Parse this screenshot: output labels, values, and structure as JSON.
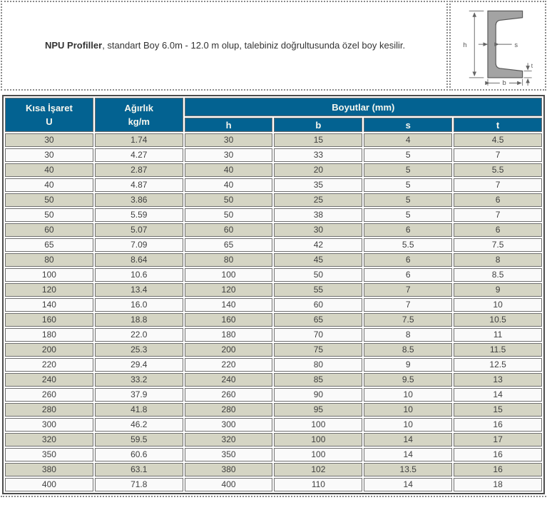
{
  "banner": {
    "title_bold": "NPU Profiller",
    "rest": ", standart Boy 6.0m - 12.0 m olup, talebiniz doğrultusunda özel boy kesilir."
  },
  "diagram": {
    "h_label": "h",
    "s_label": "s",
    "b_label": "b",
    "t_label": "t"
  },
  "table": {
    "headers": {
      "col1_line1": "Kısa İşaret",
      "col1_line2": "U",
      "col2_line1": "Ağırlık",
      "col2_line2": "kg/m",
      "group": "Boyutlar (mm)",
      "sub": [
        "h",
        "b",
        "s",
        "t"
      ]
    },
    "rows": [
      [
        "30",
        "1.74",
        "30",
        "15",
        "4",
        "4.5"
      ],
      [
        "30",
        "4.27",
        "30",
        "33",
        "5",
        "7"
      ],
      [
        "40",
        "2.87",
        "40",
        "20",
        "5",
        "5.5"
      ],
      [
        "40",
        "4.87",
        "40",
        "35",
        "5",
        "7"
      ],
      [
        "50",
        "3.86",
        "50",
        "25",
        "5",
        "6"
      ],
      [
        "50",
        "5.59",
        "50",
        "38",
        "5",
        "7"
      ],
      [
        "60",
        "5.07",
        "60",
        "30",
        "6",
        "6"
      ],
      [
        "65",
        "7.09",
        "65",
        "42",
        "5.5",
        "7.5"
      ],
      [
        "80",
        "8.64",
        "80",
        "45",
        "6",
        "8"
      ],
      [
        "100",
        "10.6",
        "100",
        "50",
        "6",
        "8.5"
      ],
      [
        "120",
        "13.4",
        "120",
        "55",
        "7",
        "9"
      ],
      [
        "140",
        "16.0",
        "140",
        "60",
        "7",
        "10"
      ],
      [
        "160",
        "18.8",
        "160",
        "65",
        "7.5",
        "10.5"
      ],
      [
        "180",
        "22.0",
        "180",
        "70",
        "8",
        "11"
      ],
      [
        "200",
        "25.3",
        "200",
        "75",
        "8.5",
        "11.5"
      ],
      [
        "220",
        "29.4",
        "220",
        "80",
        "9",
        "12.5"
      ],
      [
        "240",
        "33.2",
        "240",
        "85",
        "9.5",
        "13"
      ],
      [
        "260",
        "37.9",
        "260",
        "90",
        "10",
        "14"
      ],
      [
        "280",
        "41.8",
        "280",
        "95",
        "10",
        "15"
      ],
      [
        "300",
        "46.2",
        "300",
        "100",
        "10",
        "16"
      ],
      [
        "320",
        "59.5",
        "320",
        "100",
        "14",
        "17"
      ],
      [
        "350",
        "60.6",
        "350",
        "100",
        "14",
        "16"
      ],
      [
        "380",
        "63.1",
        "380",
        "102",
        "13.5",
        "16"
      ],
      [
        "400",
        "71.8",
        "400",
        "110",
        "14",
        "18"
      ]
    ]
  },
  "colors": {
    "header_bg": "#036291",
    "header_fg": "#f7f7ef",
    "row_odd": "#d5d5c4",
    "row_even": "#fafafa",
    "cell_border": "#707070",
    "table_border": "#4d4d4d",
    "dotted": "#8a8a8a",
    "text": "#3f3f3f"
  }
}
